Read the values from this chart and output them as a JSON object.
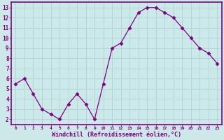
{
  "x": [
    0,
    1,
    2,
    3,
    4,
    5,
    6,
    7,
    8,
    9,
    10,
    11,
    12,
    13,
    14,
    15,
    16,
    17,
    18,
    19,
    20,
    21,
    22,
    23
  ],
  "y": [
    5.5,
    6.0,
    4.5,
    3.0,
    2.5,
    2.0,
    3.5,
    4.5,
    3.5,
    2.0,
    5.5,
    9.0,
    9.5,
    11.0,
    12.5,
    13.0,
    13.0,
    12.5,
    12.0,
    11.0,
    10.0,
    9.0,
    8.5,
    7.5
  ],
  "line_color": "#800080",
  "marker": "D",
  "marker_size": 2.5,
  "bg_color": "#cce8e8",
  "grid_color": "#b0d8d8",
  "xlabel": "Windchill (Refroidissement éolien,°C)",
  "xlabel_color": "#800080",
  "tick_color": "#800080",
  "spine_color": "#800080",
  "xlim": [
    -0.5,
    23.5
  ],
  "ylim": [
    1.5,
    13.5
  ],
  "yticks": [
    2,
    3,
    4,
    5,
    6,
    7,
    8,
    9,
    10,
    11,
    12,
    13
  ],
  "xtick_labels": [
    "0",
    "1",
    "2",
    "3",
    "4",
    "5",
    "6",
    "7",
    "8",
    "9",
    "10",
    "11",
    "12",
    "13",
    "14",
    "15",
    "16",
    "17",
    "18",
    "19",
    "20",
    "21",
    "22",
    "23"
  ]
}
